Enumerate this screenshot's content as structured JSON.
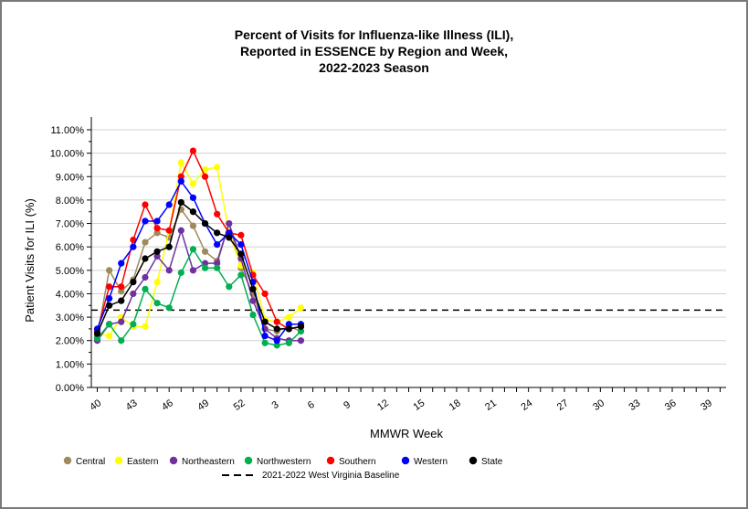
{
  "chart_data": {
    "type": "line",
    "title_lines": [
      "Percent of Visits for Influenza-like Illness (ILI),",
      "Reported in ESSENCE by Region and Week,",
      "2022-2023 Season"
    ],
    "xlabel": "MMWR Week",
    "ylabel": "Patient Visits for ILI (%)",
    "ylim": [
      0,
      11
    ],
    "y_ticks": [
      "0.00%",
      "1.00%",
      "2.00%",
      "3.00%",
      "4.00%",
      "5.00%",
      "6.00%",
      "7.00%",
      "8.00%",
      "9.00%",
      "10.00%",
      "11.00%"
    ],
    "x_ticks": [
      "40",
      "43",
      "46",
      "49",
      "52",
      "3",
      "6",
      "9",
      "12",
      "15",
      "18",
      "21",
      "24",
      "27",
      "30",
      "33",
      "36",
      "39"
    ],
    "grid": "horizontal",
    "legend_position": "bottom",
    "series": [
      {
        "name": "Central",
        "color": "#a08a5c",
        "values": [
          2.2,
          5.0,
          4.1,
          4.6,
          6.2,
          6.6,
          6.4,
          7.6,
          6.9,
          5.8,
          5.4,
          7.0,
          5.1,
          4.0,
          2.5,
          2.4,
          2.6,
          2.4
        ]
      },
      {
        "name": "Eastern",
        "color": "#ffff00",
        "values": [
          2.3,
          2.2,
          3.0,
          2.6,
          2.6,
          4.5,
          6.7,
          9.6,
          8.7,
          9.3,
          9.4,
          6.6,
          5.2,
          4.9,
          2.9,
          2.8,
          3.0,
          3.4
        ]
      },
      {
        "name": "Northeastern",
        "color": "#7030a0",
        "values": [
          2.0,
          2.7,
          2.8,
          4.0,
          4.7,
          5.6,
          5.0,
          6.7,
          5.0,
          5.3,
          5.3,
          7.0,
          5.5,
          3.7,
          2.5,
          2.1,
          2.0,
          2.0
        ]
      },
      {
        "name": "Northwestern",
        "color": "#00b050",
        "values": [
          2.1,
          2.7,
          2.0,
          2.7,
          4.2,
          3.6,
          3.4,
          4.9,
          5.9,
          5.1,
          5.1,
          4.3,
          4.8,
          3.1,
          1.9,
          1.8,
          1.9,
          2.4
        ]
      },
      {
        "name": "Southern",
        "color": "#ff0000",
        "values": [
          2.4,
          4.3,
          4.3,
          6.3,
          7.8,
          6.8,
          6.7,
          9.0,
          10.1,
          9.0,
          7.4,
          6.6,
          6.5,
          4.8,
          4.0,
          2.8,
          2.5,
          2.6
        ]
      },
      {
        "name": "Western",
        "color": "#0000ff",
        "values": [
          2.5,
          3.8,
          5.3,
          6.0,
          7.1,
          7.1,
          7.8,
          8.8,
          8.1,
          7.0,
          6.1,
          6.6,
          6.1,
          4.5,
          2.2,
          2.0,
          2.7,
          2.7
        ]
      },
      {
        "name": "State",
        "color": "#000000",
        "values": [
          2.3,
          3.5,
          3.7,
          4.5,
          5.5,
          5.8,
          6.0,
          7.9,
          7.5,
          7.0,
          6.6,
          6.4,
          5.7,
          4.2,
          2.8,
          2.5,
          2.5,
          2.6
        ]
      }
    ],
    "baseline": {
      "label": "2021-2022 West Virginia Baseline",
      "value": 3.3,
      "color": "#000000"
    }
  }
}
